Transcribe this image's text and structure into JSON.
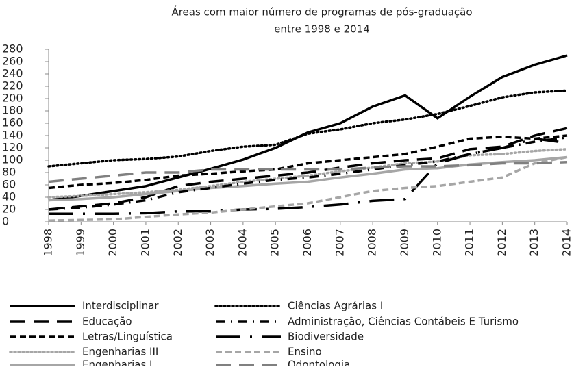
{
  "chart_data": {
    "type": "line",
    "title": [
      "Áreas com maior número de programas de pós-graduação",
      "entre 1998 e 2014"
    ],
    "categories": [
      "1998",
      "1999",
      "2000",
      "2001",
      "2002",
      "2003",
      "2004",
      "2005",
      "2006",
      "2007",
      "2008",
      "2009",
      "2010",
      "2011",
      "2012",
      "2013",
      "2014"
    ],
    "ylim": [
      0,
      280
    ],
    "yticks": [
      0,
      20,
      40,
      60,
      80,
      100,
      120,
      140,
      160,
      180,
      200,
      220,
      240,
      260,
      280
    ],
    "series": [
      {
        "name": "Interdisciplinar",
        "color": "#000000",
        "style": "solid",
        "values": [
          35,
          42,
          50,
          58,
          72,
          86,
          101,
          120,
          145,
          160,
          187,
          205,
          168,
          203,
          235,
          255,
          270
        ]
      },
      {
        "name": "Educação",
        "color": "#000000",
        "style": "longdash",
        "values": [
          20,
          25,
          30,
          40,
          58,
          65,
          70,
          75,
          80,
          88,
          95,
          100,
          103,
          118,
          122,
          140,
          152
        ]
      },
      {
        "name": "Letras/Linguística",
        "color": "#000000",
        "style": "dashed",
        "values": [
          55,
          60,
          63,
          68,
          75,
          78,
          82,
          85,
          95,
          100,
          105,
          110,
          122,
          135,
          138,
          135,
          140
        ]
      },
      {
        "name": "Engenharias III",
        "color": "#a6a6a6",
        "style": "dotted",
        "values": [
          40,
          42,
          45,
          48,
          52,
          58,
          65,
          70,
          75,
          82,
          88,
          95,
          98,
          108,
          110,
          115,
          118
        ]
      },
      {
        "name": "Engenharias I",
        "color": "#a6a6a6",
        "style": "solid",
        "values": [
          35,
          37,
          40,
          45,
          50,
          55,
          58,
          62,
          65,
          72,
          78,
          85,
          87,
          93,
          97,
          100,
          105
        ]
      },
      {
        "name": "Ciências Agrárias I",
        "color": "#000000",
        "style": "dotted",
        "values": [
          90,
          95,
          100,
          102,
          106,
          115,
          122,
          125,
          143,
          150,
          160,
          166,
          175,
          188,
          202,
          210,
          213
        ]
      },
      {
        "name": "Administração, Ciências Contábeis E Turismo",
        "color": "#000000",
        "style": "dashdot",
        "values": [
          20,
          23,
          28,
          35,
          48,
          55,
          62,
          68,
          72,
          78,
          85,
          92,
          98,
          110,
          120,
          130,
          137
        ]
      },
      {
        "name": "Biodiversidade",
        "color": "#000000",
        "style": "longdashdot",
        "values": [
          13,
          13,
          13,
          14,
          17,
          17,
          20,
          21,
          24,
          28,
          34,
          37,
          95,
          110,
          120,
          135,
          128
        ]
      },
      {
        "name": "Ensino",
        "color": "#a6a6a6",
        "style": "dashed",
        "values": [
          2,
          3,
          4,
          8,
          12,
          15,
          20,
          25,
          30,
          40,
          50,
          55,
          58,
          65,
          72,
          95,
          105
        ]
      },
      {
        "name": "Odontologia",
        "color": "#808080",
        "style": "longdash",
        "values": [
          65,
          70,
          75,
          80,
          80,
          85,
          85,
          85,
          85,
          85,
          88,
          90,
          90,
          92,
          95,
          95,
          97
        ]
      }
    ]
  }
}
